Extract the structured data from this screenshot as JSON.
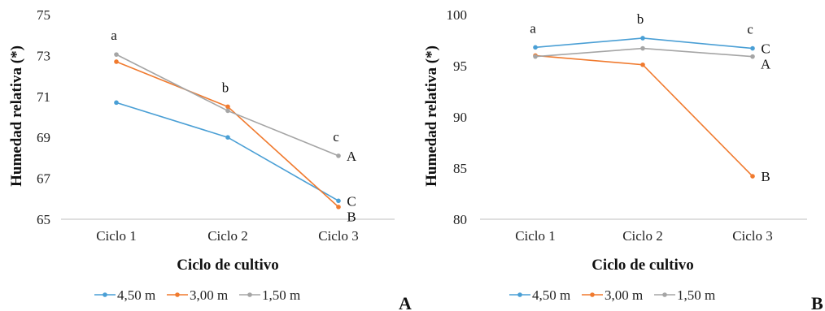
{
  "chart_data": [
    {
      "type": "line",
      "panel_label": "A",
      "xlabel": "Ciclo de cultivo",
      "ylabel": "Humedad relativa (*)",
      "categories": [
        "Ciclo 1",
        "Ciclo 2",
        "Ciclo 3"
      ],
      "ylim": [
        65,
        75
      ],
      "yticks": [
        65,
        67,
        69,
        71,
        73,
        75
      ],
      "series": [
        {
          "name": "4,50 m",
          "color": "#4a9fd5",
          "values": [
            70.7,
            69.0,
            65.9
          ],
          "end_label": "C"
        },
        {
          "name": "3,00 m",
          "color": "#f07a2e",
          "values": [
            72.7,
            70.5,
            65.6
          ],
          "end_label": "B"
        },
        {
          "name": "1,50 m",
          "color": "#a5a5a5",
          "values": [
            73.05,
            70.3,
            68.1
          ],
          "end_label": "A"
        }
      ],
      "category_labels": [
        "a",
        "b",
        "c"
      ],
      "legend": "bottom"
    },
    {
      "type": "line",
      "panel_label": "B",
      "xlabel": "Ciclo de cultivo",
      "ylabel": "Humedad relativa (*)",
      "categories": [
        "Ciclo 1",
        "Ciclo 2",
        "Ciclo 3"
      ],
      "ylim": [
        80,
        100
      ],
      "yticks": [
        80,
        85,
        90,
        95,
        100
      ],
      "series": [
        {
          "name": "4,50 m",
          "color": "#4a9fd5",
          "values": [
            96.8,
            97.7,
            96.7
          ],
          "end_label": "C"
        },
        {
          "name": "3,00 m",
          "color": "#f07a2e",
          "values": [
            96.0,
            95.1,
            84.2
          ],
          "end_label": "B"
        },
        {
          "name": "1,50 m",
          "color": "#a5a5a5",
          "values": [
            95.9,
            96.7,
            95.9
          ],
          "end_label": "A"
        }
      ],
      "category_labels": [
        "a",
        "b",
        "c"
      ],
      "legend": "bottom"
    }
  ]
}
